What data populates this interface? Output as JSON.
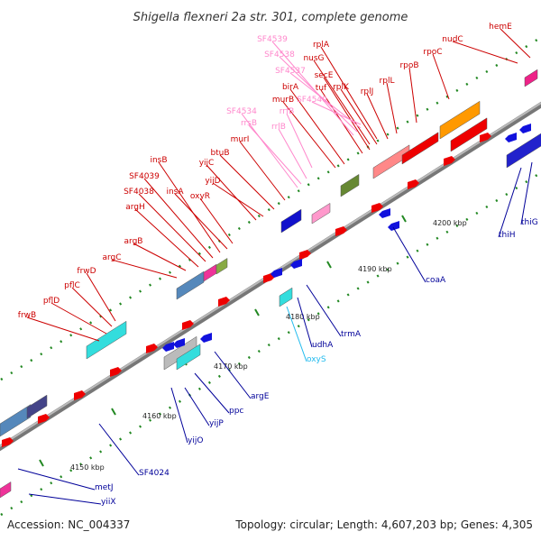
{
  "title": "Shigella flexneri 2a str. 301, complete genome",
  "footer": {
    "accession": "Accession: NC_004337",
    "summary": "Topology: circular; Length: 4,607,203 bp; Genes: 4,305"
  },
  "colors": {
    "forward_label": "#cc0000",
    "reverse_label": "#000099",
    "rna_label": "#ff88cc",
    "axis": "#888888",
    "tick": "#228822"
  },
  "ticks": [
    "4150 kbp",
    "4160 kbp",
    "4170 kbp",
    "4180 kbp",
    "4190 kbp",
    "4200 kbp"
  ],
  "forward_genes": [
    "frwB",
    "pflD",
    "pflC",
    "frwD",
    "argC",
    "argB",
    "argH",
    "SF4038",
    "SF4039",
    "insB",
    "insA",
    "oxyR",
    "yijC",
    "yijD",
    "btuB",
    "murI",
    "murB",
    "birA",
    "tuf",
    "secE",
    "nusG",
    "rplK",
    "rplA",
    "rplJ",
    "rplL",
    "rpoB",
    "rpoC",
    "nudC",
    "hemE"
  ],
  "rna_genes": [
    "SF4539",
    "SF4538",
    "SF4537",
    "SF4540",
    "rrfB",
    "SF4534",
    "rrsB",
    "rrlB"
  ],
  "reverse_genes": [
    "metJ",
    "yiiX",
    "SF4024",
    "yijO",
    "yijP",
    "ppc",
    "argE",
    "oxyS",
    "udhA",
    "trmA",
    "coaA",
    "thiH",
    "thiG"
  ]
}
